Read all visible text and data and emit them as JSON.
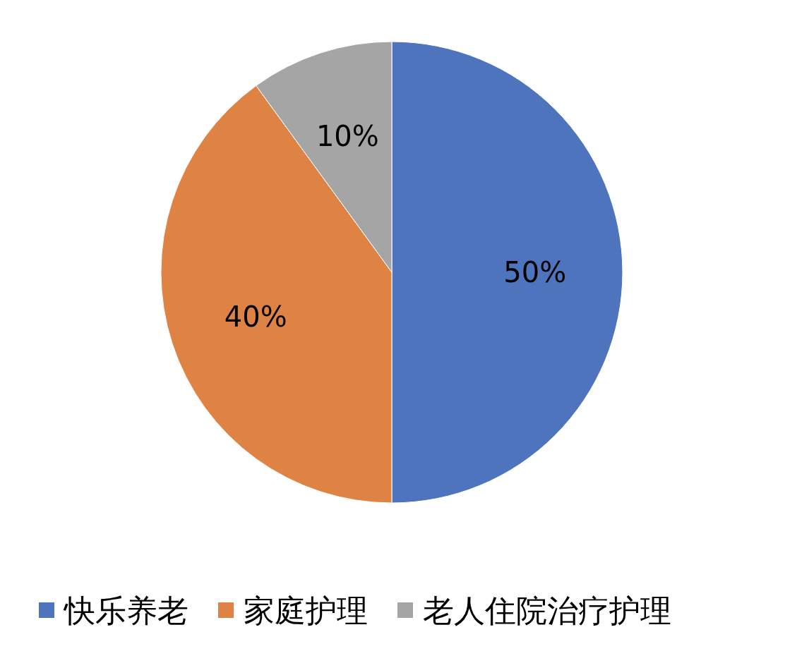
{
  "chart_data": {
    "type": "pie",
    "categories": [
      "快乐养老",
      "家庭护理",
      "老人住院治疗护理"
    ],
    "values": [
      50,
      40,
      10
    ],
    "colors": [
      "#4e74bd",
      "#df8344",
      "#a5a5a5"
    ],
    "value_labels": [
      "50%",
      "40%",
      "10%"
    ],
    "legend": "bottom"
  }
}
